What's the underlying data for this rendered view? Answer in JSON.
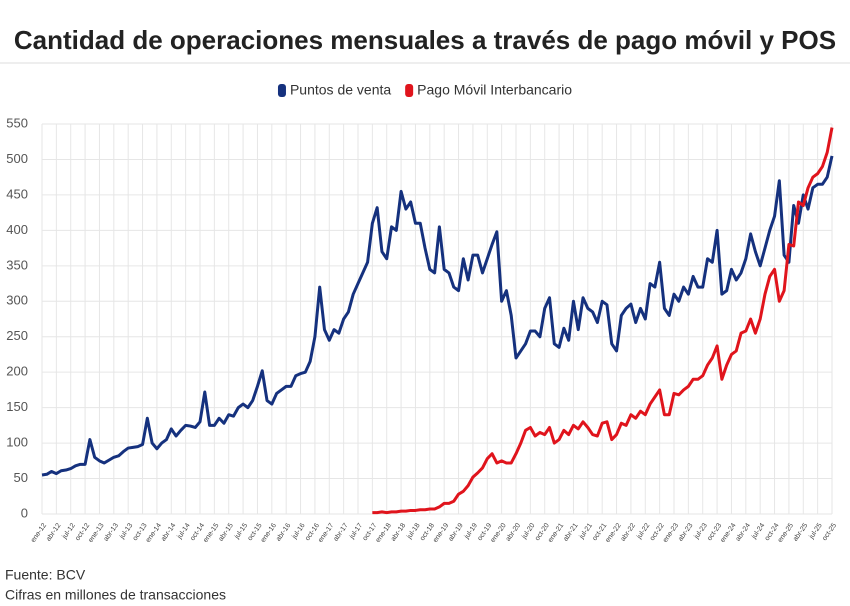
{
  "chart_data": {
    "type": "line",
    "title": "Cantidad de operaciones mensuales a través de pago móvil y POS",
    "source": "Fuente: BCV",
    "note": "Cifras en millones de transacciones",
    "categories": [
      "ene-12",
      null,
      null,
      "abr-12",
      null,
      null,
      "jul-12",
      null,
      null,
      "oct-12",
      null,
      null,
      "ene-13",
      null,
      null,
      "abr-13",
      null,
      null,
      "jul-13",
      null,
      null,
      "oct-13",
      null,
      null,
      "ene-14",
      null,
      null,
      "abr-14",
      null,
      null,
      "jul-14",
      null,
      null,
      "oct-14",
      null,
      null,
      "ene-15",
      null,
      null,
      "abr-15",
      null,
      null,
      "jul-15",
      null,
      null,
      "oct-15",
      null,
      null,
      "ene-16",
      null,
      null,
      "abr-16",
      null,
      null,
      "jul-16",
      null,
      null,
      "oct-16",
      null,
      null,
      "ene-17",
      null,
      null,
      "abr-17",
      null,
      null,
      "jul-17",
      null,
      null,
      "oct-17",
      null,
      null,
      "ene-18",
      null,
      null,
      "abr-18",
      null,
      null,
      "jul-18",
      null,
      null,
      "oct-18",
      null,
      null,
      "ene-19",
      null,
      null,
      "abr-19",
      null,
      null,
      "jul-19",
      null,
      null,
      "oct-19",
      null,
      null,
      "ene-20",
      null,
      null,
      "abr-20",
      null,
      null,
      "jul-20",
      null,
      null,
      "oct-20",
      null,
      null,
      "ene-21",
      null,
      null,
      "abr-21",
      null,
      null,
      "jul-21",
      null,
      null,
      "oct-21",
      null,
      null,
      "ene-22",
      null,
      null,
      "abr-22",
      null,
      null,
      "jul-22",
      null,
      null,
      "oct-22",
      null,
      null,
      "ene-23",
      null,
      null,
      "abr-23",
      null,
      null,
      "jul-23",
      null,
      null,
      "oct-23",
      null,
      null,
      "ene-24",
      null,
      null,
      "abr-24",
      null,
      null,
      "jul-24",
      null,
      null,
      "oct-24",
      null,
      null,
      "ene-25",
      null,
      null,
      "abr-25",
      null,
      null,
      "jul-25",
      null,
      null,
      "oct-25"
    ],
    "series": [
      {
        "name": "Puntos de venta",
        "color": "#15317e",
        "values": [
          55,
          56,
          60,
          57,
          61,
          62,
          64,
          68,
          70,
          70,
          105,
          80,
          75,
          72,
          76,
          80,
          82,
          88,
          93,
          94,
          95,
          98,
          135,
          100,
          92,
          100,
          105,
          120,
          110,
          118,
          125,
          124,
          122,
          130,
          172,
          125,
          125,
          135,
          128,
          140,
          138,
          150,
          155,
          150,
          160,
          180,
          202,
          160,
          155,
          170,
          175,
          180,
          180,
          195,
          198,
          200,
          215,
          250,
          320,
          260,
          245,
          260,
          255,
          275,
          285,
          310,
          325,
          340,
          355,
          410,
          432,
          370,
          360,
          405,
          400,
          455,
          430,
          440,
          410,
          410,
          375,
          345,
          340,
          405,
          345,
          340,
          320,
          315,
          360,
          330,
          365,
          365,
          340,
          360,
          380,
          398,
          300,
          315,
          280,
          220,
          230,
          240,
          258,
          258,
          250,
          290,
          305,
          240,
          235,
          262,
          245,
          300,
          260,
          305,
          290,
          285,
          270,
          300,
          295,
          240,
          230,
          280,
          290,
          296,
          270,
          290,
          275,
          325,
          320,
          355,
          290,
          280,
          310,
          300,
          320,
          310,
          335,
          320,
          320,
          360,
          355,
          400,
          310,
          315,
          345,
          330,
          340,
          360,
          395,
          370,
          350,
          375,
          400,
          420,
          470,
          365,
          355,
          435,
          410,
          450,
          430,
          460,
          465,
          465,
          475,
          505
        ]
      },
      {
        "name": "Pago Móvil Interbancario",
        "color": "#e0141c",
        "values": [
          null,
          null,
          null,
          null,
          null,
          null,
          null,
          null,
          null,
          null,
          null,
          null,
          null,
          null,
          null,
          null,
          null,
          null,
          null,
          null,
          null,
          null,
          null,
          null,
          null,
          null,
          null,
          null,
          null,
          null,
          null,
          null,
          null,
          null,
          null,
          null,
          null,
          null,
          null,
          null,
          null,
          null,
          null,
          null,
          null,
          null,
          null,
          null,
          null,
          null,
          null,
          null,
          null,
          null,
          null,
          null,
          null,
          null,
          null,
          null,
          null,
          null,
          null,
          null,
          null,
          null,
          null,
          null,
          null,
          2,
          2,
          3,
          2,
          3,
          3,
          4,
          4,
          5,
          5,
          6,
          6,
          7,
          7,
          10,
          15,
          15,
          18,
          28,
          32,
          40,
          52,
          58,
          65,
          78,
          85,
          72,
          75,
          72,
          72,
          85,
          100,
          118,
          122,
          110,
          115,
          112,
          122,
          100,
          105,
          118,
          112,
          125,
          120,
          130,
          122,
          112,
          110,
          128,
          130,
          105,
          112,
          128,
          125,
          140,
          135,
          145,
          140,
          155,
          165,
          175,
          140,
          140,
          170,
          168,
          175,
          180,
          190,
          190,
          195,
          210,
          220,
          237,
          190,
          210,
          225,
          230,
          255,
          258,
          275,
          255,
          275,
          310,
          335,
          345,
          300,
          315,
          380,
          378,
          440,
          435,
          460,
          475,
          480,
          490,
          510,
          545
        ]
      }
    ],
    "ylim": [
      0,
      550
    ],
    "yticks": [
      0,
      50,
      100,
      150,
      200,
      250,
      300,
      350,
      400,
      450,
      500,
      550
    ],
    "grid": true
  }
}
